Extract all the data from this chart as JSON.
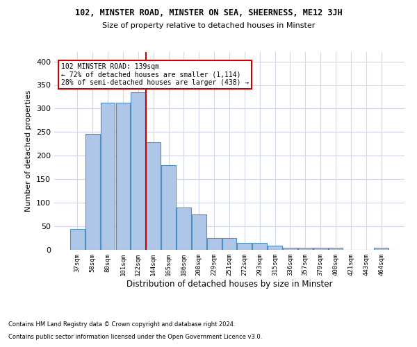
{
  "title1": "102, MINSTER ROAD, MINSTER ON SEA, SHEERNESS, ME12 3JH",
  "title2": "Size of property relative to detached houses in Minster",
  "xlabel": "Distribution of detached houses by size in Minster",
  "ylabel": "Number of detached properties",
  "categories": [
    "37sqm",
    "58sqm",
    "80sqm",
    "101sqm",
    "122sqm",
    "144sqm",
    "165sqm",
    "186sqm",
    "208sqm",
    "229sqm",
    "251sqm",
    "272sqm",
    "293sqm",
    "315sqm",
    "336sqm",
    "357sqm",
    "379sqm",
    "400sqm",
    "421sqm",
    "443sqm",
    "464sqm"
  ],
  "values": [
    44,
    246,
    313,
    313,
    335,
    228,
    180,
    90,
    75,
    25,
    25,
    15,
    15,
    9,
    4,
    5,
    5,
    4,
    0,
    0,
    4
  ],
  "bar_color": "#aec6e8",
  "bar_edge_color": "#4a90c4",
  "grid_color": "#d0d8e8",
  "vline_color": "#cc0000",
  "vline_x_index": 4.5,
  "annotation_text": "102 MINSTER ROAD: 139sqm\n← 72% of detached houses are smaller (1,114)\n28% of semi-detached houses are larger (438) →",
  "annotation_box_color": "#ffffff",
  "annotation_box_edge": "#cc0000",
  "ylim": [
    0,
    420
  ],
  "yticks": [
    0,
    50,
    100,
    150,
    200,
    250,
    300,
    350,
    400
  ],
  "footnote1": "Contains HM Land Registry data © Crown copyright and database right 2024.",
  "footnote2": "Contains public sector information licensed under the Open Government Licence v3.0."
}
